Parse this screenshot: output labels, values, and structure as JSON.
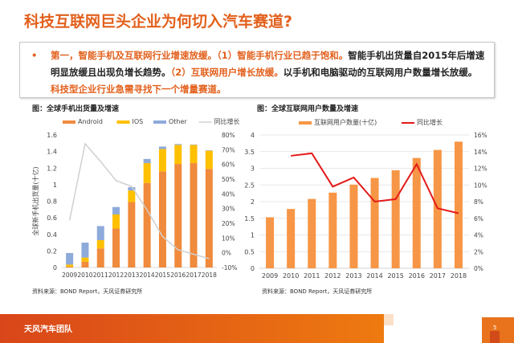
{
  "title": "科技互联网巨头企业为何切入汽车赛道?",
  "bullet": {
    "p1": "第一，智能手机及互联网行业增速放缓。（1）智能手机行业已趋于饱和。",
    "p2": "智能手机出货量自2015年后增速明显放缓且出现负增长趋势。",
    "p3": "（2）互联网用户增长放缓。",
    "p4": "以手机和电脑驱动的互联网用户数量增长放缓。",
    "p5": "科技型企业行业急需寻找下一个增量赛道。"
  },
  "footer": {
    "team": "天风汽车团队",
    "page": "5"
  },
  "colors": {
    "accent": "#e2601c",
    "android": "#f08a3c",
    "ios": "#ffc000",
    "other": "#8eaadb",
    "growth_left": "#d0d0d0",
    "users": "#f79646",
    "growth_right": "#e41a1a"
  },
  "chart_data": [
    {
      "type": "bar",
      "stacked": true,
      "title": "图：全球手机出货量及增速",
      "ylabel": "全球新手机出货量(十亿)",
      "source": "资料来源：BOND Report，天风证券研究所",
      "categories": [
        "2009",
        "2010",
        "2011",
        "2012",
        "2013",
        "2014",
        "2015",
        "2016",
        "2017",
        "2018"
      ],
      "series": [
        {
          "name": "Android",
          "values": [
            0.01,
            0.07,
            0.23,
            0.47,
            0.79,
            1.02,
            1.16,
            1.25,
            1.26,
            1.19
          ]
        },
        {
          "name": "IOS",
          "values": [
            0.025,
            0.05,
            0.1,
            0.17,
            0.14,
            0.24,
            0.27,
            0.23,
            0.22,
            0.22
          ]
        },
        {
          "name": "Other",
          "values": [
            0.14,
            0.18,
            0.17,
            0.09,
            0.04,
            0.05,
            0.03,
            0.01,
            0.005,
            0.005
          ]
        }
      ],
      "line": {
        "name": "同比增长",
        "axis": "right",
        "values": [
          22,
          74,
          62,
          49,
          45,
          29,
          11,
          2,
          -1,
          -4
        ]
      },
      "ylim": [
        0,
        1.6
      ],
      "yticks": [
        "0",
        "0.2",
        "0.4",
        "0.6",
        "0.8",
        "1",
        "1.2",
        "1.4",
        "1.6"
      ],
      "y2lim": [
        -10,
        80
      ],
      "y2ticks": [
        "-10%",
        "0%",
        "10%",
        "20%",
        "30%",
        "40%",
        "50%",
        "60%",
        "70%",
        "80%"
      ],
      "grid": false,
      "legend": "top"
    },
    {
      "type": "bar",
      "title": "图：全球互联网用户数量及增速",
      "source": "资料来源：BOND Report，天风证券研究所",
      "categories": [
        "2009",
        "2010",
        "2011",
        "2012",
        "2013",
        "2014",
        "2015",
        "2016",
        "2017",
        "2018"
      ],
      "series": [
        {
          "name": "互联网用户数量(十亿)",
          "values": [
            1.53,
            1.78,
            2.08,
            2.27,
            2.51,
            2.71,
            2.94,
            3.31,
            3.55,
            3.8
          ]
        }
      ],
      "line": {
        "name": "同比增长",
        "axis": "right",
        "values": [
          null,
          13.5,
          13.8,
          9.8,
          10.9,
          8.0,
          8.3,
          12.5,
          7.2,
          6.6
        ]
      },
      "ylim": [
        0,
        4
      ],
      "yticks": [
        "0",
        "0.5",
        "1",
        "1.5",
        "2",
        "2.5",
        "3",
        "3.5",
        "4"
      ],
      "y2lim": [
        0,
        16
      ],
      "y2ticks": [
        "0%",
        "2%",
        "4%",
        "6%",
        "8%",
        "10%",
        "12%",
        "14%",
        "16%"
      ],
      "grid": true,
      "legend": "top"
    }
  ]
}
